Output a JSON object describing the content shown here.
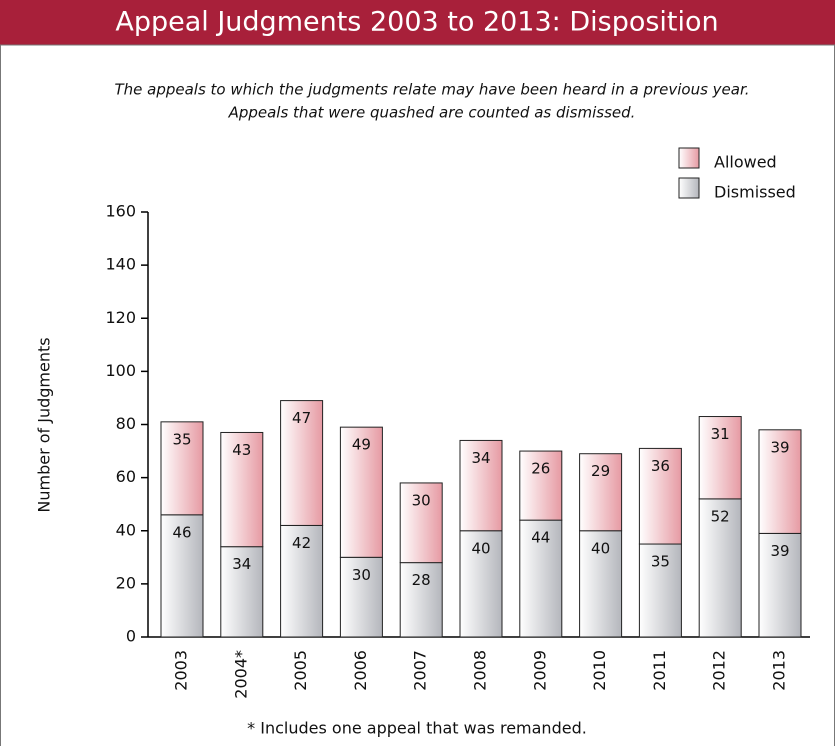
{
  "chart_data": {
    "type": "stacked_bar",
    "title": "Appeal Judgments 2003 to 2013: Disposition",
    "subtitle": [
      "The appeals to which the judgments relate may have been heard in a previous year.",
      "Appeals that were quashed are counted as dismissed."
    ],
    "y_label": "Number of Judgments",
    "footnote": "* Includes one appeal that was remanded.",
    "categories": [
      "2003",
      "2004*",
      "2005",
      "2006",
      "2007",
      "2008",
      "2009",
      "2010",
      "2011",
      "2012",
      "2013"
    ],
    "series": [
      {
        "name": "Dismissed",
        "color": "#b4b6bc",
        "values": [
          46,
          34,
          42,
          30,
          28,
          40,
          44,
          40,
          35,
          52,
          39
        ]
      },
      {
        "name": "Allowed",
        "color": "#e69aa3",
        "values": [
          35,
          43,
          47,
          49,
          30,
          34,
          26,
          29,
          36,
          31,
          39
        ]
      }
    ],
    "ylim": [
      0,
      160
    ],
    "yticks": [
      0,
      20,
      40,
      60,
      80,
      100,
      120,
      140,
      160
    ]
  }
}
